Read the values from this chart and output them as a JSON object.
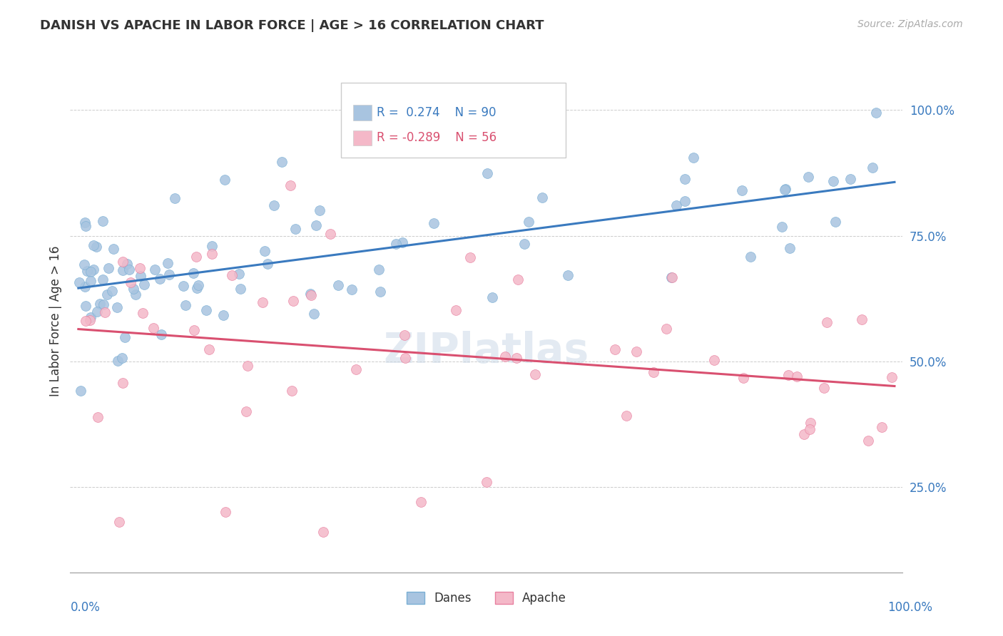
{
  "title": "DANISH VS APACHE IN LABOR FORCE | AGE > 16 CORRELATION CHART",
  "source": "Source: ZipAtlas.com",
  "ylabel": "In Labor Force | Age > 16",
  "danes_color": "#a8c4e0",
  "danes_edge_color": "#7aafd4",
  "apache_color": "#f4b8c8",
  "apache_edge_color": "#e880a0",
  "danes_line_color": "#3a7abf",
  "apache_line_color": "#d95070",
  "danes_R": 0.274,
  "danes_N": 90,
  "apache_R": -0.289,
  "apache_N": 56,
  "watermark": "ZIPlatlas",
  "legend_label_danes": "Danes",
  "legend_label_apache": "Apache",
  "grid_color": "#cccccc",
  "marker_size": 100,
  "line_width": 2.2
}
